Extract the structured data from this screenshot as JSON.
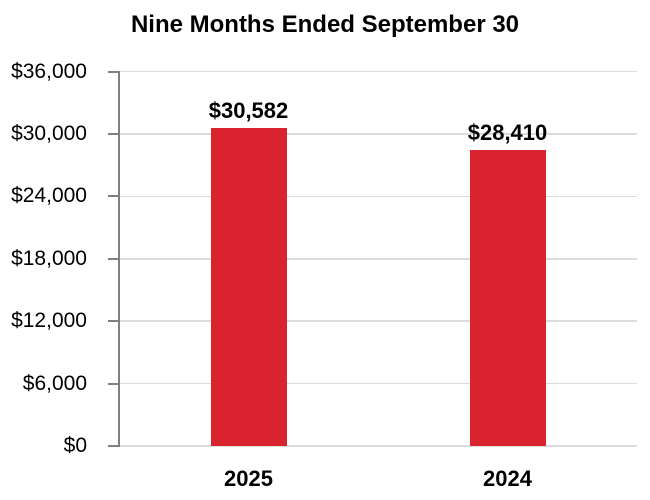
{
  "chart_data": {
    "type": "bar",
    "title": "Nine Months Ended September 30",
    "categories": [
      "2025",
      "2024"
    ],
    "values": [
      30582,
      28410
    ],
    "bar_labels": [
      "$30,582",
      "$28,410"
    ],
    "xlabel": "",
    "ylabel": "",
    "ylim": [
      0,
      36000
    ],
    "ytick_step": 6000,
    "ytick_labels": [
      "$0",
      "$6,000",
      "$12,000",
      "$18,000",
      "$24,000",
      "$30,000",
      "$36,000"
    ],
    "grid": "horizontal",
    "legend": "none",
    "colors": {
      "bar": "#D9232E",
      "gridline": "#DCDCDC",
      "axis": "#808080",
      "text": "#000000",
      "background": "#FFFFFF"
    }
  }
}
